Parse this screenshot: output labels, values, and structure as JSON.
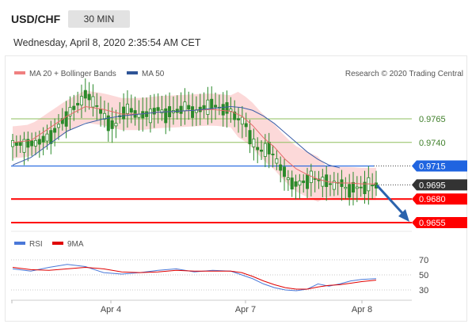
{
  "header": {
    "symbol": "USD/CHF",
    "timeframe": "30 MIN",
    "timestamp": "Wednesday, April 8, 2020 2:35:54 AM CET"
  },
  "legend": {
    "items": [
      {
        "label": "MA 20 + Bollinger Bands",
        "color": "#f08080"
      },
      {
        "label": "MA 50",
        "color": "#2f5597"
      }
    ],
    "credit": "Research © 2020 Trading Central"
  },
  "colors": {
    "candle": "#2a8a2a",
    "band": "#fbd0d0",
    "ma20": "#e66a6a",
    "ma50": "#3c5fa8",
    "support": "#ff0000",
    "pivot": "#1f64e0",
    "resistance": "#8fbf5f",
    "price_tag": "#333333",
    "arrow": "#2b63ad",
    "rsi": "#4a78d8",
    "rsi_ma": "#e00000"
  },
  "chart_data": [
    {
      "type": "line",
      "title": "USD/CHF 30 MIN",
      "x_ticks": [
        "Apr 4",
        "Apr 7",
        "Apr 8"
      ],
      "ylim": [
        0.9645,
        0.983
      ],
      "levels": [
        {
          "label": "0.9765",
          "value": 0.9765,
          "kind": "resistance"
        },
        {
          "label": "0.9740",
          "value": 0.974,
          "kind": "resistance"
        },
        {
          "label": "0.9715",
          "value": 0.9715,
          "kind": "pivot"
        },
        {
          "label": "0.9695",
          "value": 0.9695,
          "kind": "current_price"
        },
        {
          "label": "0.9680",
          "value": 0.968,
          "kind": "support"
        },
        {
          "label": "0.9655",
          "value": 0.9655,
          "kind": "support"
        }
      ],
      "series": [
        {
          "name": "Price",
          "x": [
            0,
            5,
            10,
            15,
            20,
            22,
            25,
            28,
            30,
            32,
            35,
            38,
            40,
            42,
            44,
            46,
            48,
            50,
            52,
            54,
            56,
            58,
            60,
            62,
            64,
            66,
            68,
            70,
            72,
            74,
            76,
            78,
            80,
            82,
            85,
            88,
            90,
            92,
            95,
            98,
            100
          ],
          "values": [
            0.9738,
            0.9738,
            0.9745,
            0.9768,
            0.979,
            0.9785,
            0.9768,
            0.9755,
            0.9772,
            0.9775,
            0.9768,
            0.977,
            0.9775,
            0.977,
            0.9772,
            0.9775,
            0.9778,
            0.9772,
            0.9775,
            0.978,
            0.9778,
            0.9776,
            0.9774,
            0.9765,
            0.976,
            0.974,
            0.973,
            0.9735,
            0.9725,
            0.9712,
            0.97,
            0.9695,
            0.9698,
            0.9702,
            0.97,
            0.9695,
            0.9698,
            0.969,
            0.9692,
            0.9694,
            0.9695
          ]
        },
        {
          "name": "MA 20",
          "x": [
            0,
            5,
            10,
            15,
            20,
            25,
            30,
            35,
            40,
            45,
            50,
            55,
            60,
            63,
            66,
            69,
            72,
            75,
            78,
            81,
            84,
            87,
            90,
            93,
            96,
            100
          ],
          "values": [
            0.974,
            0.9742,
            0.9755,
            0.9768,
            0.9778,
            0.9775,
            0.977,
            0.977,
            0.9772,
            0.9773,
            0.9774,
            0.9775,
            0.9773,
            0.9768,
            0.9758,
            0.9745,
            0.9735,
            0.9722,
            0.9712,
            0.9706,
            0.9701,
            0.9698,
            0.9697,
            0.9697,
            0.9696,
            0.9696
          ]
        },
        {
          "name": "MA 50",
          "x": [
            0,
            5,
            10,
            15,
            20,
            25,
            30,
            35,
            40,
            45,
            50,
            55,
            60,
            63,
            66,
            69,
            72,
            75,
            78,
            81,
            84,
            87,
            90
          ],
          "values": [
            0.9716,
            0.9724,
            0.9738,
            0.9752,
            0.976,
            0.9765,
            0.9768,
            0.977,
            0.9772,
            0.9773,
            0.9774,
            0.9776,
            0.9778,
            0.9777,
            0.9774,
            0.9768,
            0.976,
            0.975,
            0.974,
            0.973,
            0.9722,
            0.9716,
            0.9713
          ]
        }
      ]
    },
    {
      "type": "line",
      "title": "RSI",
      "y_ticks": [
        70,
        50,
        30
      ],
      "ylim": [
        20,
        80
      ],
      "series": [
        {
          "name": "RSI",
          "x": [
            0,
            5,
            10,
            15,
            20,
            25,
            30,
            35,
            40,
            45,
            50,
            55,
            60,
            63,
            66,
            69,
            72,
            75,
            78,
            81,
            84,
            87,
            90,
            93,
            96,
            100
          ],
          "values": [
            58,
            55,
            60,
            64,
            61,
            53,
            51,
            53,
            56,
            58,
            54,
            56,
            55,
            50,
            45,
            38,
            33,
            30,
            29,
            31,
            38,
            35,
            38,
            42,
            44,
            45
          ]
        },
        {
          "name": "9MA",
          "x": [
            0,
            5,
            10,
            15,
            20,
            25,
            30,
            35,
            40,
            45,
            50,
            55,
            60,
            63,
            66,
            69,
            72,
            75,
            78,
            81,
            84,
            87,
            90,
            93,
            96,
            100
          ],
          "values": [
            60,
            57,
            56,
            58,
            60,
            58,
            54,
            53,
            54,
            56,
            55,
            55,
            55,
            53,
            48,
            42,
            37,
            33,
            31,
            31,
            34,
            36,
            37,
            39,
            41,
            43
          ]
        }
      ]
    }
  ]
}
